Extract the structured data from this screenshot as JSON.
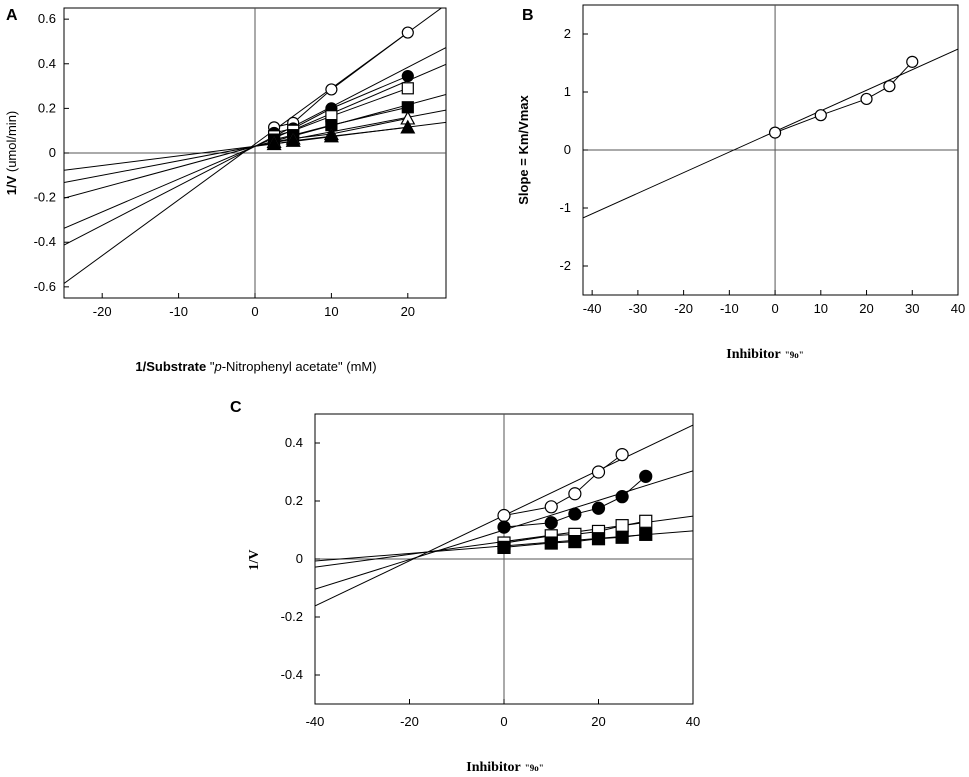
{
  "chart_data": [
    {
      "type": "scatter",
      "panel": "A",
      "xlabel_bold": "1/Substrate",
      "xlabel_rest": " \"p-Nitrophenyl acetate\" (mM)",
      "ylabel_bold": "1/V",
      "ylabel_rest": " (umol/min)",
      "xlim": [
        -25,
        25
      ],
      "ylim": [
        -0.65,
        0.65
      ],
      "xticks": [
        -20,
        -10,
        0,
        10,
        20
      ],
      "yticks": [
        -0.6,
        -0.4,
        -0.2,
        0,
        0.2,
        0.4,
        0.6
      ],
      "x": [
        2.5,
        5,
        10,
        20
      ],
      "series": [
        {
          "name": "open-circle",
          "marker": "circle-open",
          "values": [
            0.115,
            0.135,
            0.285,
            0.54
          ],
          "fit": [
            0.04,
            0.025
          ]
        },
        {
          "name": "filled-circle",
          "marker": "circle-filled",
          "values": [
            0.09,
            0.11,
            0.2,
            0.345
          ],
          "fit": [
            0.03,
            0.0177
          ]
        },
        {
          "name": "open-square",
          "marker": "square-open",
          "values": [
            0.075,
            0.1,
            0.165,
            0.29
          ],
          "fit": [
            0.03,
            0.0147
          ]
        },
        {
          "name": "filled-square",
          "marker": "square-filled",
          "values": [
            0.06,
            0.08,
            0.125,
            0.205
          ],
          "fit": [
            0.03,
            0.0093
          ]
        },
        {
          "name": "open-triangle",
          "marker": "triangle-open",
          "values": [
            0.05,
            0.065,
            0.085,
            0.155
          ],
          "fit": [
            0.03,
            0.0065
          ]
        },
        {
          "name": "filled-triangle",
          "marker": "triangle-filled",
          "values": [
            0.04,
            0.055,
            0.075,
            0.115
          ],
          "fit": [
            0.03,
            0.0043
          ]
        }
      ]
    },
    {
      "type": "scatter",
      "panel": "B",
      "xlabel_main": "Inhibitor",
      "xlabel_small": "\"9o\"",
      "ylabel": "Slope = Km/Vmax",
      "xlim": [
        -42,
        40
      ],
      "ylim": [
        -2.5,
        2.5
      ],
      "xticks": [
        -40,
        -30,
        -20,
        -10,
        0,
        10,
        20,
        30,
        40
      ],
      "yticks": [
        -2,
        -1,
        0,
        1,
        2
      ],
      "x": [
        0,
        10,
        20,
        25,
        30
      ],
      "series": [
        {
          "name": "open-circle",
          "marker": "circle-open",
          "values": [
            0.3,
            0.6,
            0.88,
            1.1,
            1.52
          ],
          "fit": [
            0.32,
            0.0355
          ]
        }
      ]
    },
    {
      "type": "scatter",
      "panel": "C",
      "xlabel_main": "Inhibitor",
      "xlabel_small": "\"9o\"",
      "ylabel": "1/V",
      "xlim": [
        -40,
        40
      ],
      "ylim": [
        -0.5,
        0.5
      ],
      "xticks": [
        -40,
        -20,
        0,
        20,
        40
      ],
      "yticks": [
        -0.4,
        -0.2,
        0,
        0.2,
        0.4
      ],
      "x": [
        0,
        10,
        15,
        20,
        25,
        30
      ],
      "series": [
        {
          "name": "open-circle",
          "marker": "circle-open",
          "x": [
            0,
            10,
            15,
            20,
            25
          ],
          "values": [
            0.15,
            0.18,
            0.225,
            0.3,
            0.36
          ],
          "fit": [
            0.15,
            0.0078
          ]
        },
        {
          "name": "filled-circle",
          "marker": "circle-filled",
          "x": [
            0,
            10,
            15,
            20,
            25,
            30
          ],
          "values": [
            0.11,
            0.125,
            0.155,
            0.175,
            0.215,
            0.285
          ],
          "fit": [
            0.1,
            0.0051
          ]
        },
        {
          "name": "open-square",
          "marker": "square-open",
          "x": [
            0,
            10,
            15,
            20,
            25,
            30
          ],
          "values": [
            0.055,
            0.08,
            0.085,
            0.095,
            0.115,
            0.13
          ],
          "fit": [
            0.06,
            0.0022
          ]
        },
        {
          "name": "filled-square",
          "marker": "square-filled",
          "x": [
            0,
            10,
            15,
            20,
            25,
            30
          ],
          "values": [
            0.04,
            0.055,
            0.06,
            0.07,
            0.075,
            0.085
          ],
          "fit": [
            0.045,
            0.0013
          ]
        }
      ]
    }
  ]
}
